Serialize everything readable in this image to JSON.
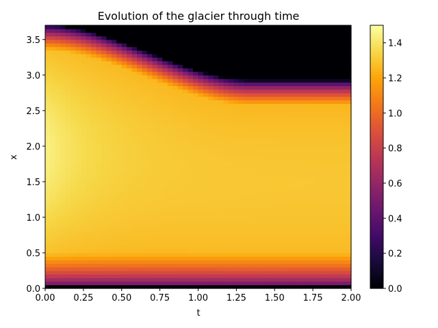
{
  "chart_data": {
    "type": "heatmap",
    "title": "Evolution of the glacier through time",
    "xlabel": "t",
    "ylabel": "x",
    "xlim": [
      0.0,
      2.0
    ],
    "ylim": [
      0.0,
      3.7
    ],
    "x_ticks": [
      "0.00",
      "0.25",
      "0.50",
      "0.75",
      "1.00",
      "1.25",
      "1.50",
      "1.75",
      "2.00"
    ],
    "y_ticks": [
      "0.0",
      "0.5",
      "1.0",
      "1.5",
      "2.0",
      "2.5",
      "3.0",
      "3.5"
    ],
    "colorbar": {
      "colormap": "inferno",
      "range": [
        0.0,
        1.5
      ],
      "ticks": [
        "0.0",
        "0.2",
        "0.4",
        "0.6",
        "0.8",
        "1.0",
        "1.2",
        "1.4"
      ]
    },
    "grid": false,
    "glacier_model": {
      "description": "thickness h(t, x); zero above the glacier front",
      "initial_peak_value": 1.45,
      "initial_peak_x": 1.95,
      "steady_value": 1.3,
      "initial_front_x": 3.7,
      "final_front_x": 2.93,
      "front_retreat_end_t": 1.35
    }
  }
}
